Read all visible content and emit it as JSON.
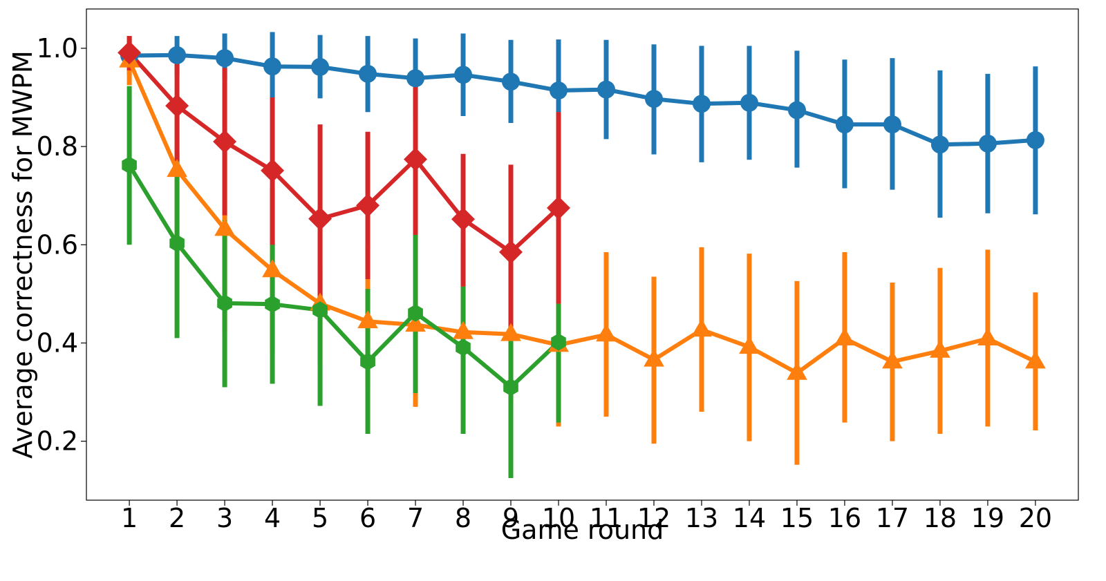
{
  "chart_data": {
    "type": "line",
    "xlabel": "Game round",
    "ylabel": "Average correctness for MWPM",
    "xlim": [
      0.1,
      20.9
    ],
    "ylim": [
      0.08,
      1.08
    ],
    "x_ticks": [
      1,
      2,
      3,
      4,
      5,
      6,
      7,
      8,
      9,
      10,
      11,
      12,
      13,
      14,
      15,
      16,
      17,
      18,
      19,
      20
    ],
    "y_ticks": [
      0.2,
      0.4,
      0.6,
      0.8,
      1.0
    ],
    "y_tick_labels": [
      "0.2",
      "0.4",
      "0.6",
      "0.8",
      "1.0"
    ],
    "grid": false,
    "legend": "none",
    "series": [
      {
        "color": "#1f77b4",
        "marker": "circle",
        "x": [
          1,
          2,
          3,
          4,
          5,
          6,
          7,
          8,
          9,
          10,
          11,
          12,
          13,
          14,
          15,
          16,
          17,
          18,
          19,
          20
        ],
        "y": [
          0.985,
          0.986,
          0.98,
          0.963,
          0.962,
          0.948,
          0.939,
          0.946,
          0.932,
          0.914,
          0.916,
          0.897,
          0.887,
          0.889,
          0.874,
          0.845,
          0.845,
          0.804,
          0.806,
          0.813
        ],
        "err_low": [
          0.945,
          0.945,
          0.935,
          0.9,
          0.898,
          0.87,
          0.858,
          0.862,
          0.848,
          0.81,
          0.815,
          0.784,
          0.768,
          0.773,
          0.757,
          0.715,
          0.712,
          0.655,
          0.664,
          0.662
        ],
        "err_high": [
          1.025,
          1.025,
          1.03,
          1.033,
          1.027,
          1.025,
          1.02,
          1.03,
          1.017,
          1.018,
          1.017,
          1.008,
          1.005,
          1.005,
          0.995,
          0.977,
          0.98,
          0.955,
          0.948,
          0.963
        ]
      },
      {
        "color": "#ff7f0e",
        "marker": "triangle",
        "x": [
          1,
          2,
          3,
          4,
          5,
          6,
          7,
          8,
          9,
          10,
          11,
          12,
          13,
          14,
          15,
          16,
          17,
          18,
          19,
          20
        ],
        "y": [
          0.975,
          0.752,
          0.632,
          0.548,
          0.48,
          0.444,
          0.437,
          0.422,
          0.418,
          0.396,
          0.417,
          0.366,
          0.427,
          0.392,
          0.339,
          0.409,
          0.362,
          0.384,
          0.409,
          0.362
        ],
        "err_low": [
          0.925,
          0.6,
          0.42,
          0.38,
          0.36,
          0.31,
          0.27,
          0.25,
          0.28,
          0.23,
          0.25,
          0.195,
          0.26,
          0.2,
          0.152,
          0.238,
          0.2,
          0.215,
          0.23,
          0.222
        ],
        "err_high": [
          1.025,
          0.88,
          0.8,
          0.715,
          0.64,
          0.6,
          0.61,
          0.6,
          0.58,
          0.56,
          0.585,
          0.535,
          0.595,
          0.582,
          0.526,
          0.585,
          0.523,
          0.553,
          0.59,
          0.503
        ]
      },
      {
        "color": "#2ca02c",
        "marker": "hexagon",
        "x": [
          1,
          2,
          3,
          4,
          5,
          6,
          7,
          8,
          9,
          10
        ],
        "y": [
          0.762,
          0.603,
          0.481,
          0.479,
          0.467,
          0.362,
          0.461,
          0.391,
          0.31,
          0.402
        ],
        "err_low": [
          0.6,
          0.41,
          0.31,
          0.317,
          0.272,
          0.215,
          0.298,
          0.215,
          0.125,
          0.238
        ],
        "err_high": [
          0.923,
          0.79,
          0.65,
          0.605,
          0.555,
          0.51,
          0.62,
          0.515,
          0.495,
          0.48
        ]
      },
      {
        "color": "#d62728",
        "marker": "diamond",
        "x": [
          1,
          2,
          3,
          4,
          5,
          6,
          7,
          8,
          9,
          10
        ],
        "y": [
          0.991,
          0.883,
          0.81,
          0.751,
          0.653,
          0.68,
          0.774,
          0.652,
          0.585,
          0.675
        ],
        "err_low": [
          0.955,
          0.77,
          0.66,
          0.6,
          0.49,
          0.53,
          0.62,
          0.515,
          0.43,
          0.48
        ],
        "err_high": [
          1.025,
          1.0,
          0.96,
          0.9,
          0.845,
          0.83,
          0.93,
          0.785,
          0.763,
          0.87
        ]
      }
    ]
  }
}
